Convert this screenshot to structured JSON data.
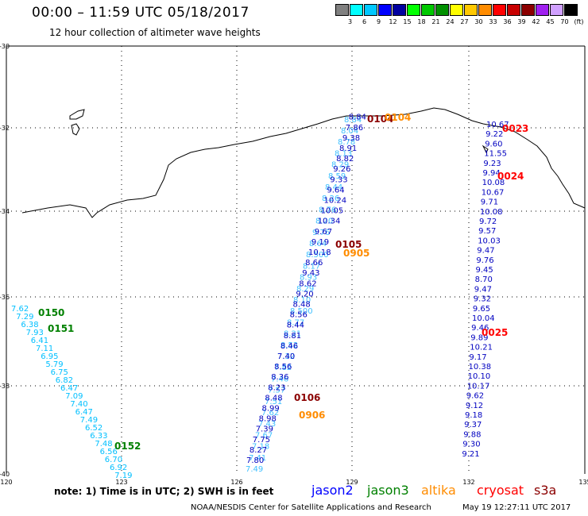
{
  "title": "00:00 – 11:59 UTC 05/18/2017",
  "subtitle": "12 hour collection of altimeter wave heights",
  "colorbar": {
    "colors": [
      "#808080",
      "#00ffff",
      "#00c8ff",
      "#0000ff",
      "#0000a0",
      "#00ff00",
      "#00c800",
      "#009000",
      "#ffff00",
      "#ffc800",
      "#ff8c00",
      "#ff0000",
      "#c80000",
      "#8c0000",
      "#a020f0",
      "#d0a0ff",
      "#000000"
    ],
    "labels": [
      "",
      "3",
      "6",
      "9",
      "12",
      "15",
      "18",
      "21",
      "24",
      "27",
      "30",
      "33",
      "36",
      "39",
      "42",
      "45",
      "70",
      "(ft)"
    ]
  },
  "axes": {
    "lat_ticks": [
      "-30",
      "-32",
      "-34",
      "-36",
      "-38",
      "-40"
    ],
    "lon_ticks": [
      "120",
      "123",
      "126",
      "129",
      "132",
      "135"
    ]
  },
  "tracks": {
    "track_a": {
      "color": "#00bfff",
      "values": [
        "7.62",
        "7.29",
        "6.38",
        "7.93",
        "6.41",
        "7.11",
        "6.95",
        "5.79",
        "6.75",
        "6.82",
        "6.47",
        "7.09",
        "7.40",
        "6.47",
        "7.49",
        "6.52",
        "6.33",
        "7.48",
        "6.56",
        "6.70",
        "6.92",
        "7.19"
      ]
    },
    "track_b_light": {
      "color": "#40c0ff",
      "values": [
        "7.49",
        "7.41",
        "7.18",
        "7.67",
        "7.43",
        "7.62",
        "7.51",
        "7.57",
        "7.46",
        "7.82",
        "7.32",
        "8.52",
        "8.21",
        "8.77",
        "8.500",
        "8.10",
        "8.29",
        "8.93",
        "8.17",
        "8.500",
        "8.64",
        "9.76",
        "8.20",
        "8.76",
        "8.26",
        "8.44",
        "8.59",
        "8.29",
        "8.13",
        "8.78",
        "8.04",
        "8.84"
      ]
    },
    "track_b_dark": {
      "color": "#0000c0",
      "values": [
        "7.80",
        "8.27",
        "7.75",
        "7.39",
        "8.98",
        "8.99",
        "8.48",
        "8.23",
        "8.36",
        "8.56",
        "7.40",
        "8.46",
        "8.81",
        "8.44",
        "8.56",
        "8.48",
        "9.20",
        "8.62",
        "9.43",
        "8.66",
        "10.18",
        "9.19",
        "9.67",
        "10.34",
        "10.05",
        "10.24",
        "9.64",
        "9.33",
        "9.26",
        "8.82",
        "8.91",
        "9.38",
        "7.86",
        "8.84"
      ]
    },
    "track_c": {
      "color": "#0000c0",
      "values": [
        "10.67",
        "9.22",
        "9.60",
        "11.55",
        "9.23",
        "9.94",
        "10.08",
        "10.67",
        "9.71",
        "10.08",
        "9.72",
        "9.57",
        "10.03",
        "9.47",
        "9.76",
        "9.45",
        "8.70",
        "9.47",
        "9.32",
        "9.65",
        "10.04",
        "9.46",
        "9.89",
        "10.21",
        "9.17",
        "10.38",
        "10.10",
        "10.17",
        "9.62",
        "9.12",
        "9.18",
        "9.37",
        "9.88",
        "9.30",
        "9.21"
      ]
    }
  },
  "time_labels": [
    {
      "text": "0150",
      "color": "#008000"
    },
    {
      "text": "0151",
      "color": "#008000"
    },
    {
      "text": "0152",
      "color": "#008000"
    },
    {
      "text": "0104",
      "color": "#8b0000"
    },
    {
      "text": "0104",
      "color": "#ff8c00"
    },
    {
      "text": "0105",
      "color": "#8b0000"
    },
    {
      "text": "0905",
      "color": "#ff8c00"
    },
    {
      "text": "0106",
      "color": "#8b0000"
    },
    {
      "text": "0906",
      "color": "#ff8c00"
    },
    {
      "text": "0023",
      "color": "#ff0000"
    },
    {
      "text": "0024",
      "color": "#ff0000"
    },
    {
      "text": "0025",
      "color": "#ff0000"
    }
  ],
  "note": "note:  1) Time is in UTC;  2) SWH is in feet",
  "legend": [
    {
      "name": "jason2",
      "color": "#0000ff"
    },
    {
      "name": "jason3",
      "color": "#008000"
    },
    {
      "name": "altika",
      "color": "#ff8c00"
    },
    {
      "name": "cryosat",
      "color": "#ff0000"
    },
    {
      "name": "s3a",
      "color": "#8b0000"
    }
  ],
  "footer_org": "NOAA/NESDIS Center for Satellite Applications and Research",
  "footer_time": "May 19 12:27:11 UTC 2017"
}
